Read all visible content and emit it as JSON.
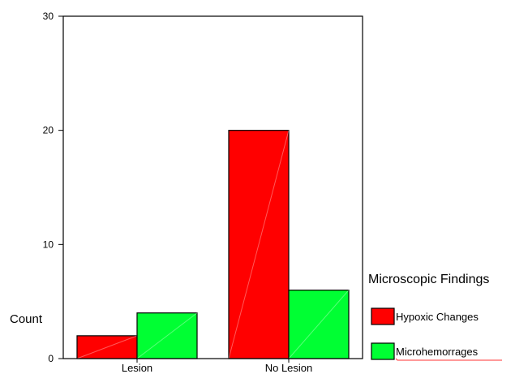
{
  "chart_data": {
    "type": "bar",
    "categories": [
      "Lesion",
      "No Lesion"
    ],
    "series": [
      {
        "name": "Hypoxic Changes",
        "values": [
          2,
          20
        ],
        "color": "#ff0000"
      },
      {
        "name": "Microhemorrages",
        "values": [
          4,
          6
        ],
        "color": "#00ff33"
      }
    ],
    "ylabel": "Count",
    "ylim": [
      0,
      30
    ],
    "yticks": [
      0,
      10,
      20,
      30
    ],
    "legend_title": "Microscopic Findings",
    "legend_position": "right",
    "grid": false
  }
}
